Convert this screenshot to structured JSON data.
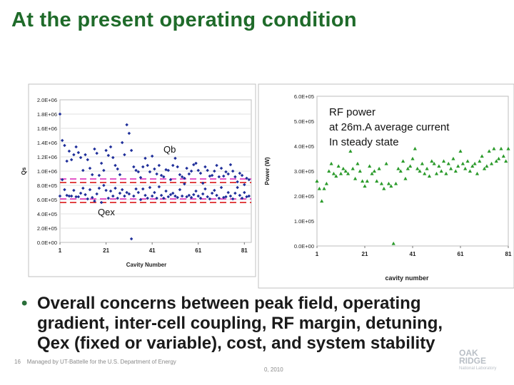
{
  "slide": {
    "title": "At the present operating condition",
    "bullet": "Overall concerns between peak field, operating gradient, inter-cell coupling, RF margin, detuning, Qex (fixed or variable), cost, and system stability",
    "page_number": "16",
    "footer_text": "Managed by UT-Battelle for the U.S. Department of Energy",
    "footer_date": "0, 2010",
    "logo_text": "OAK RIDGE",
    "logo_sub": "National Laboratory"
  },
  "colors": {
    "title": "#1f6b2a",
    "qb_points": "#1f2f9a",
    "pink_line": "#e040c0",
    "red_line": "#dd2a2a",
    "power_points": "#2a9a2a"
  },
  "chart_data": [
    {
      "type": "scatter",
      "title": "",
      "xlabel": "Cavity Number",
      "ylabel": "Qs",
      "xlim": [
        1,
        84
      ],
      "ylim": [
        0,
        2000000
      ],
      "x_ticks": [
        "1",
        "21",
        "41",
        "61",
        "81"
      ],
      "y_ticks": [
        "0.0E+00",
        "2.0E+05",
        "4.0E+05",
        "6.0E+05",
        "8.0E+05",
        "1.0E+06",
        "1.2E+06",
        "1.4E+06",
        "1.6E+06",
        "1.8E+06",
        "2.0E+06"
      ],
      "annotations": [
        "Qb",
        "Qex"
      ],
      "series": [
        {
          "name": "Qb",
          "x": [
            1,
            2,
            3,
            4,
            5,
            6,
            7,
            8,
            9,
            10,
            11,
            12,
            13,
            14,
            15,
            16,
            17,
            18,
            19,
            20,
            21,
            22,
            23,
            24,
            25,
            26,
            27,
            28,
            29,
            30,
            31,
            32,
            33,
            34,
            35,
            36,
            37,
            38,
            39,
            40,
            41,
            42,
            43,
            44,
            45,
            46,
            47,
            48,
            49,
            50,
            51,
            52,
            53,
            54,
            55,
            56,
            57,
            58,
            59,
            60,
            61,
            62,
            63,
            64,
            65,
            66,
            67,
            68,
            69,
            70,
            71,
            72,
            73,
            74,
            75,
            76,
            77,
            78,
            79,
            80,
            81,
            82,
            83
          ],
          "values": [
            1800000,
            1430000,
            1360000,
            1140000,
            1280000,
            1160000,
            1230000,
            1340000,
            1260000,
            1190000,
            1010000,
            1230000,
            1160000,
            1040000,
            950000,
            1310000,
            1250000,
            940000,
            1110000,
            1010000,
            1290000,
            1220000,
            1340000,
            1190000,
            1080000,
            1030000,
            950000,
            1400000,
            1230000,
            1650000,
            1530000,
            1290000,
            1060000,
            1010000,
            990000,
            910000,
            1060000,
            1180000,
            1080000,
            990000,
            1210000,
            1030000,
            960000,
            1080000,
            940000,
            920000,
            1020000,
            1010000,
            880000,
            1080000,
            1180000,
            1060000,
            950000,
            920000,
            900000,
            1040000,
            960000,
            1000000,
            1090000,
            1110000,
            1010000,
            970000,
            830000,
            1060000,
            1010000,
            930000,
            940000,
            1000000,
            1080000,
            920000,
            1040000,
            930000,
            990000,
            960000,
            1090000,
            1000000,
            920000,
            850000,
            970000,
            940000,
            810000,
            900000,
            880000
          ]
        },
        {
          "name": "Qex",
          "x": [
            1,
            2,
            3,
            4,
            5,
            6,
            7,
            8,
            9,
            10,
            11,
            12,
            13,
            14,
            15,
            16,
            17,
            18,
            19,
            20,
            21,
            22,
            23,
            24,
            25,
            26,
            27,
            28,
            29,
            30,
            31,
            32,
            33,
            34,
            35,
            36,
            37,
            38,
            39,
            40,
            41,
            42,
            43,
            44,
            45,
            46,
            47,
            48,
            49,
            50,
            51,
            52,
            53,
            54,
            55,
            56,
            57,
            58,
            59,
            60,
            61,
            62,
            63,
            64,
            65,
            66,
            67,
            68,
            69,
            70,
            71,
            72,
            73,
            74,
            75,
            76,
            77,
            78,
            79,
            80,
            81,
            82,
            83
          ],
          "values": [
            650000,
            880000,
            740000,
            660000,
            650000,
            650000,
            730000,
            640000,
            640000,
            690000,
            760000,
            670000,
            610000,
            740000,
            630000,
            580000,
            680000,
            760000,
            560000,
            800000,
            730000,
            620000,
            720000,
            650000,
            760000,
            620000,
            690000,
            740000,
            650000,
            700000,
            680000,
            50000,
            650000,
            750000,
            700000,
            600000,
            750000,
            660000,
            620000,
            770000,
            650000,
            700000,
            620000,
            780000,
            660000,
            620000,
            720000,
            640000,
            670000,
            690000,
            650000,
            630000,
            740000,
            650000,
            820000,
            640000,
            660000,
            630000,
            670000,
            720000,
            650000,
            620000,
            680000,
            750000,
            640000,
            610000,
            690000,
            730000,
            660000,
            620000,
            770000,
            630000,
            640000,
            700000,
            650000,
            610000,
            690000,
            770000,
            660000,
            620000,
            700000,
            640000,
            650000
          ]
        }
      ],
      "reference_lines": [
        {
          "name": "pink-upper",
          "y": 890000,
          "color": "#e040c0"
        },
        {
          "name": "red-upper",
          "y": 840000,
          "color": "#dd2a2a"
        },
        {
          "name": "pink-lower",
          "y": 610000,
          "color": "#e040c0"
        },
        {
          "name": "red-lower",
          "y": 560000,
          "color": "#dd2a2a"
        }
      ]
    },
    {
      "type": "scatter",
      "title": "",
      "xlabel": "cavity number",
      "ylabel": "Power (W)",
      "xlim": [
        1,
        81
      ],
      "ylim": [
        0,
        600000
      ],
      "x_ticks": [
        "1",
        "21",
        "41",
        "61",
        "81"
      ],
      "y_ticks": [
        "0.0E+00",
        "1.0E+05",
        "2.0E+05",
        "3.0E+05",
        "4.0E+05",
        "5.0E+05",
        "6.0E+05"
      ],
      "annotations": [
        "RF power",
        "at 26m.A  average current",
        "In steady state"
      ],
      "series": [
        {
          "name": "RF power",
          "x": [
            1,
            2,
            3,
            4,
            5,
            6,
            7,
            8,
            9,
            10,
            11,
            12,
            13,
            14,
            15,
            16,
            17,
            18,
            19,
            20,
            21,
            22,
            23,
            24,
            25,
            26,
            27,
            28,
            29,
            30,
            31,
            32,
            33,
            34,
            35,
            36,
            37,
            38,
            39,
            40,
            41,
            42,
            43,
            44,
            45,
            46,
            47,
            48,
            49,
            50,
            51,
            52,
            53,
            54,
            55,
            56,
            57,
            58,
            59,
            60,
            61,
            62,
            63,
            64,
            65,
            66,
            67,
            68,
            69,
            70,
            71,
            72,
            73,
            74,
            75,
            76,
            77,
            78,
            79,
            80,
            81
          ],
          "values": [
            260000,
            230000,
            180000,
            230000,
            250000,
            300000,
            330000,
            290000,
            280000,
            320000,
            290000,
            310000,
            300000,
            290000,
            380000,
            310000,
            270000,
            330000,
            300000,
            260000,
            240000,
            260000,
            320000,
            290000,
            300000,
            260000,
            310000,
            250000,
            230000,
            330000,
            250000,
            240000,
            10000,
            250000,
            310000,
            300000,
            340000,
            270000,
            310000,
            320000,
            350000,
            390000,
            310000,
            300000,
            330000,
            290000,
            310000,
            280000,
            340000,
            330000,
            290000,
            320000,
            300000,
            340000,
            290000,
            330000,
            310000,
            350000,
            300000,
            320000,
            380000,
            330000,
            310000,
            340000,
            300000,
            320000,
            330000,
            290000,
            340000,
            360000,
            310000,
            320000,
            380000,
            330000,
            390000,
            340000,
            350000,
            390000,
            360000,
            340000,
            390000
          ]
        }
      ]
    }
  ]
}
